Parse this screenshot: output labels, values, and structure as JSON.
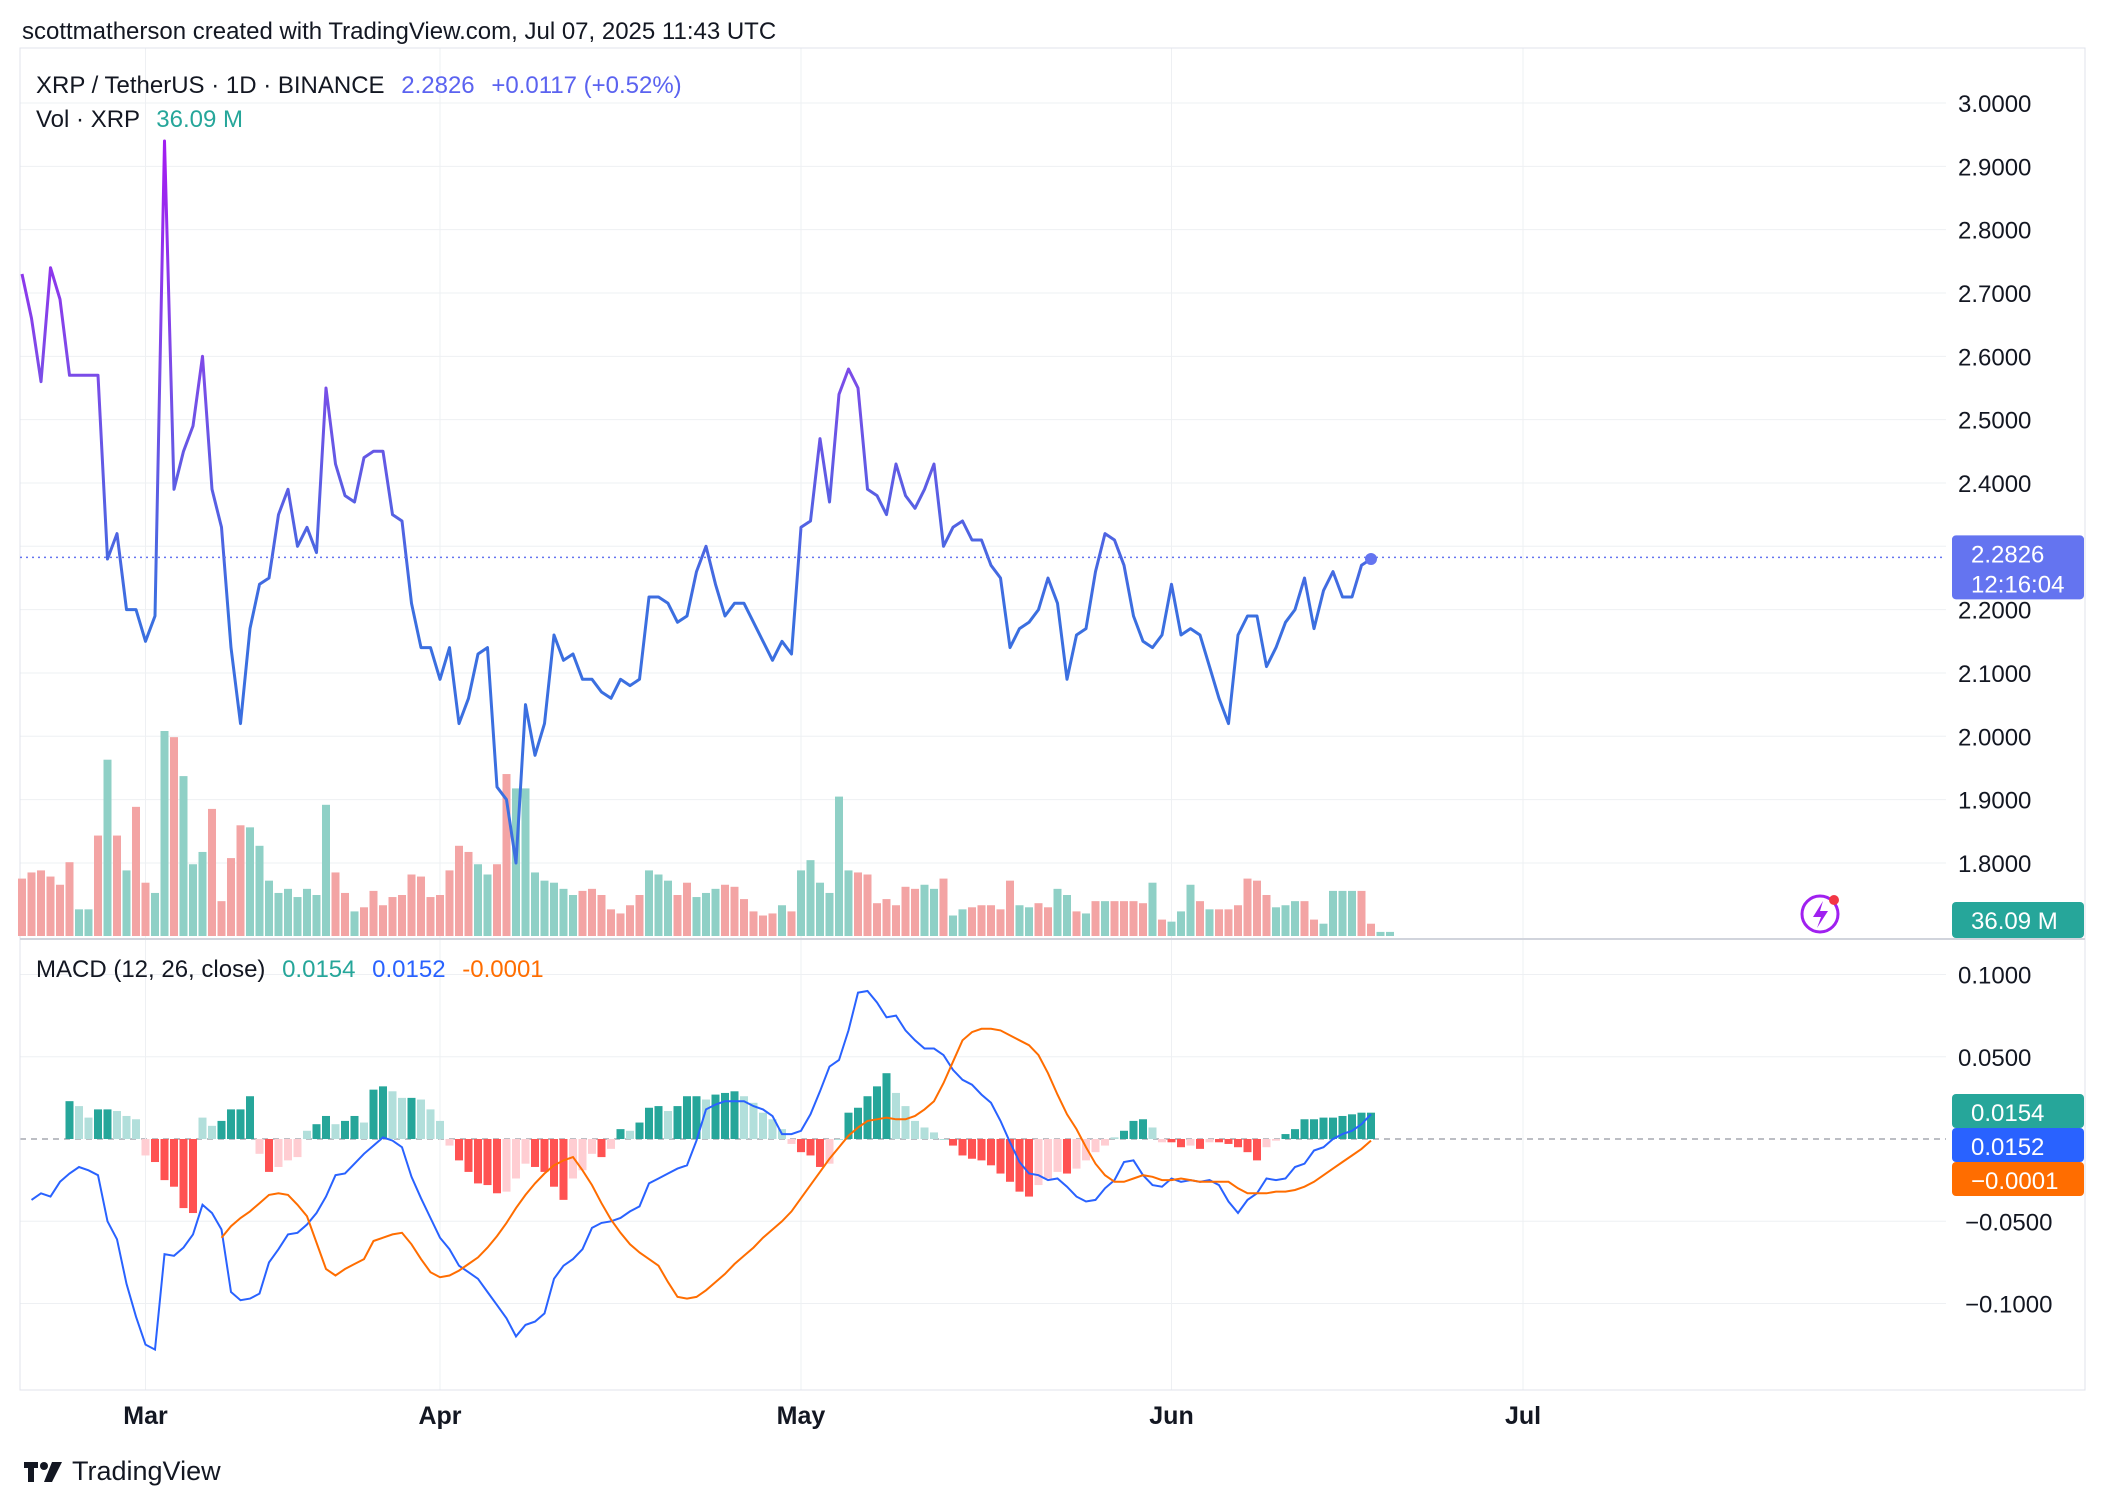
{
  "header": {
    "attribution": "scottmatherson created with TradingView.com, Jul 07, 2025 11:43 UTC"
  },
  "legend": {
    "symbol": "XRP / TetherUS · 1D · BINANCE",
    "price": "2.2826",
    "change": "+0.0117 (+0.52%)",
    "vol_label": "Vol · XRP",
    "vol_value": "36.09 M",
    "macd_label": "MACD (12, 26, close)",
    "macd_hist": "0.0154",
    "macd_line": "0.0152",
    "macd_signal": "-0.0001"
  },
  "badges": {
    "price": "2.2826",
    "countdown": "12:16:04",
    "volume": "36.09 M",
    "hist": "0.0154",
    "macd": "0.0152",
    "signal": "−0.0001"
  },
  "footer": {
    "brand": "TradingView"
  },
  "colors": {
    "price_line_blue": "#3b6fe0",
    "price_line_purple": "#a020f0",
    "vol_up": "#8fd0c6",
    "vol_down": "#f3a4a4",
    "macd_line": "#2962ff",
    "signal_line": "#ff6d00",
    "hist_up_strong": "#26a69a",
    "hist_up_weak": "#b2dfdb",
    "hist_down_strong": "#ff5252",
    "hist_down_weak": "#ffcdd2",
    "price_badge": "#6474f0",
    "grid": "#eef0f3"
  },
  "chart_data": [
    {
      "type": "line",
      "panel": "price",
      "title": "XRP / TetherUS · 1D · BINANCE",
      "y_ticks": [
        "3.0000",
        "2.9000",
        "2.8000",
        "2.7000",
        "2.6000",
        "2.5000",
        "2.4000",
        "2.3000",
        "2.2000",
        "2.1000",
        "2.0000",
        "1.9000",
        "1.8000"
      ],
      "x_ticks": [
        "Mar",
        "Apr",
        "May",
        "Jun",
        "Jul"
      ],
      "ylim": [
        1.77,
        3.03
      ],
      "last_value": 2.2826,
      "close": [
        2.73,
        2.66,
        2.56,
        2.74,
        2.69,
        2.57,
        2.57,
        2.57,
        2.57,
        2.28,
        2.32,
        2.2,
        2.2,
        2.15,
        2.19,
        2.94,
        2.39,
        2.45,
        2.49,
        2.6,
        2.39,
        2.33,
        2.14,
        2.02,
        2.17,
        2.24,
        2.25,
        2.35,
        2.39,
        2.3,
        2.33,
        2.29,
        2.55,
        2.43,
        2.38,
        2.37,
        2.44,
        2.45,
        2.45,
        2.35,
        2.34,
        2.21,
        2.14,
        2.14,
        2.09,
        2.14,
        2.02,
        2.06,
        2.13,
        2.14,
        1.92,
        1.9,
        1.8,
        2.05,
        1.97,
        2.02,
        2.16,
        2.12,
        2.13,
        2.09,
        2.09,
        2.07,
        2.06,
        2.09,
        2.08,
        2.09,
        2.22,
        2.22,
        2.21,
        2.18,
        2.19,
        2.26,
        2.3,
        2.24,
        2.19,
        2.21,
        2.21,
        2.18,
        2.15,
        2.12,
        2.15,
        2.13,
        2.33,
        2.34,
        2.47,
        2.37,
        2.54,
        2.58,
        2.55,
        2.39,
        2.38,
        2.35,
        2.43,
        2.38,
        2.36,
        2.39,
        2.43,
        2.3,
        2.33,
        2.34,
        2.31,
        2.31,
        2.27,
        2.25,
        2.14,
        2.17,
        2.18,
        2.2,
        2.25,
        2.21,
        2.09,
        2.16,
        2.17,
        2.26,
        2.32,
        2.31,
        2.27,
        2.19,
        2.15,
        2.14,
        2.16,
        2.24,
        2.16,
        2.17,
        2.16,
        2.11,
        2.06,
        2.02,
        2.16,
        2.19,
        2.19,
        2.11,
        2.14,
        2.18,
        2.2,
        2.25,
        2.17,
        2.23,
        2.26,
        2.22,
        2.22,
        2.27,
        2.28
      ]
    },
    {
      "type": "bar",
      "panel": "volume",
      "title": "Vol · XRP",
      "last_value": "36.09 M",
      "volume_relative": [
        0.28,
        0.31,
        0.32,
        0.29,
        0.25,
        0.36,
        0.13,
        0.13,
        0.49,
        0.86,
        0.49,
        0.32,
        0.63,
        0.26,
        0.21,
        1.0,
        0.97,
        0.78,
        0.35,
        0.41,
        0.62,
        0.17,
        0.38,
        0.54,
        0.53,
        0.44,
        0.27,
        0.21,
        0.23,
        0.19,
        0.23,
        0.2,
        0.64,
        0.31,
        0.21,
        0.12,
        0.14,
        0.22,
        0.15,
        0.19,
        0.2,
        0.3,
        0.29,
        0.19,
        0.2,
        0.32,
        0.44,
        0.41,
        0.35,
        0.3,
        0.35,
        0.79,
        0.72,
        0.72,
        0.31,
        0.27,
        0.26,
        0.23,
        0.2,
        0.22,
        0.23,
        0.2,
        0.13,
        0.11,
        0.15,
        0.2,
        0.32,
        0.3,
        0.27,
        0.2,
        0.26,
        0.19,
        0.21,
        0.23,
        0.25,
        0.24,
        0.18,
        0.12,
        0.1,
        0.11,
        0.15,
        0.12,
        0.32,
        0.37,
        0.26,
        0.21,
        0.68,
        0.32,
        0.31,
        0.3,
        0.16,
        0.18,
        0.15,
        0.24,
        0.23,
        0.25,
        0.23,
        0.28,
        0.1,
        0.13,
        0.14,
        0.15,
        0.15,
        0.13,
        0.27,
        0.15,
        0.14,
        0.16,
        0.14,
        0.23,
        0.2,
        0.12,
        0.11,
        0.17,
        0.17,
        0.17,
        0.17,
        0.17,
        0.16,
        0.26,
        0.08,
        0.07,
        0.12,
        0.25,
        0.17,
        0.13,
        0.13,
        0.13,
        0.15,
        0.28,
        0.27,
        0.2,
        0.14,
        0.15,
        0.17,
        0.17,
        0.08,
        0.06,
        0.22,
        0.22,
        0.22,
        0.22,
        0.06,
        0.02,
        0.02
      ],
      "up_days": [
        false,
        false,
        false,
        false,
        false,
        false,
        true,
        true,
        false,
        true,
        false,
        true,
        false,
        false,
        true,
        true,
        false,
        true,
        true,
        true,
        false,
        false,
        false,
        false,
        true,
        true,
        true,
        true,
        true,
        true,
        true,
        true,
        true,
        false,
        false,
        true,
        false,
        false,
        false,
        false,
        false,
        false,
        false,
        false,
        false,
        false,
        false,
        false,
        true,
        true,
        false,
        false,
        true,
        true,
        true,
        true,
        true,
        true,
        true,
        false,
        false,
        false,
        false,
        false,
        false,
        false,
        true,
        true,
        true,
        false,
        false,
        true,
        true,
        true,
        false,
        false,
        false,
        false,
        false,
        false,
        true,
        false,
        true,
        true,
        true,
        true,
        true,
        true,
        false,
        false,
        false,
        false,
        false,
        false,
        false,
        true,
        true,
        false,
        true,
        true,
        false,
        false,
        false,
        false,
        false,
        true,
        true,
        false,
        false,
        true,
        true,
        false,
        true,
        false,
        true,
        false,
        false,
        false,
        false,
        true,
        false,
        true,
        true,
        true,
        false,
        true,
        false,
        false,
        false,
        false,
        false,
        false,
        true,
        true,
        true,
        false,
        false,
        true,
        true,
        true,
        true,
        false,
        false,
        true,
        true
      ]
    },
    {
      "type": "line",
      "panel": "macd",
      "title": "MACD (12, 26, close)",
      "y_ticks": [
        "0.1000",
        "0.0500",
        "−0.0500",
        "−0.1000"
      ],
      "ylim": [
        -0.125,
        0.105
      ],
      "macd": [
        -0.037,
        -0.033,
        -0.035,
        -0.026,
        -0.021,
        -0.017,
        -0.019,
        -0.022,
        -0.05,
        -0.061,
        -0.088,
        -0.108,
        -0.125,
        -0.128,
        -0.07,
        -0.071,
        -0.066,
        -0.058,
        -0.04,
        -0.045,
        -0.055,
        -0.093,
        -0.098,
        -0.097,
        -0.094,
        -0.075,
        -0.067,
        -0.058,
        -0.057,
        -0.052,
        -0.045,
        -0.035,
        -0.022,
        -0.021,
        -0.015,
        -0.009,
        -0.004,
        0.001,
        -0.001,
        -0.005,
        -0.023,
        -0.036,
        -0.048,
        -0.06,
        -0.067,
        -0.077,
        -0.081,
        -0.085,
        -0.093,
        -0.101,
        -0.109,
        -0.12,
        -0.113,
        -0.111,
        -0.106,
        -0.085,
        -0.077,
        -0.073,
        -0.067,
        -0.054,
        -0.051,
        -0.05,
        -0.048,
        -0.044,
        -0.041,
        -0.027,
        -0.024,
        -0.021,
        -0.018,
        -0.016,
        -0.001,
        0.018,
        0.021,
        0.023,
        0.023,
        0.023,
        0.02,
        0.018,
        0.014,
        0.003,
        0.003,
        0.005,
        0.015,
        0.029,
        0.044,
        0.048,
        0.066,
        0.089,
        0.09,
        0.083,
        0.074,
        0.075,
        0.066,
        0.06,
        0.055,
        0.055,
        0.051,
        0.042,
        0.036,
        0.033,
        0.027,
        0.022,
        0.011,
        -0.002,
        -0.014,
        -0.021,
        -0.022,
        -0.025,
        -0.024,
        -0.029,
        -0.035,
        -0.038,
        -0.037,
        -0.03,
        -0.025,
        -0.014,
        -0.013,
        -0.022,
        -0.028,
        -0.029,
        -0.024,
        -0.026,
        -0.025,
        -0.026,
        -0.025,
        -0.028,
        -0.038,
        -0.045,
        -0.037,
        -0.033,
        -0.024,
        -0.025,
        -0.024,
        -0.017,
        -0.015,
        -0.007,
        -0.005,
        0.0,
        0.003,
        0.005,
        0.009,
        0.015
      ]
    },
    {
      "type": "line",
      "panel": "macd",
      "series_role": "signal",
      "signal": [
        -0.06,
        -0.053,
        -0.048,
        -0.044,
        -0.039,
        -0.034,
        -0.033,
        -0.034,
        -0.04,
        -0.047,
        -0.063,
        -0.079,
        -0.083,
        -0.079,
        -0.076,
        -0.073,
        -0.062,
        -0.06,
        -0.058,
        -0.057,
        -0.064,
        -0.073,
        -0.081,
        -0.084,
        -0.083,
        -0.08,
        -0.076,
        -0.072,
        -0.066,
        -0.059,
        -0.051,
        -0.042,
        -0.034,
        -0.027,
        -0.021,
        -0.016,
        -0.013,
        -0.011,
        -0.019,
        -0.028,
        -0.039,
        -0.049,
        -0.057,
        -0.064,
        -0.069,
        -0.073,
        -0.077,
        -0.087,
        -0.096,
        -0.097,
        -0.096,
        -0.092,
        -0.087,
        -0.082,
        -0.076,
        -0.071,
        -0.066,
        -0.06,
        -0.055,
        -0.05,
        -0.044,
        -0.036,
        -0.028,
        -0.02,
        -0.012,
        -0.005,
        0.002,
        0.007,
        0.011,
        0.012,
        0.013,
        0.012,
        0.012,
        0.014,
        0.018,
        0.023,
        0.034,
        0.047,
        0.06,
        0.065,
        0.067,
        0.067,
        0.066,
        0.063,
        0.06,
        0.057,
        0.051,
        0.04,
        0.027,
        0.015,
        0.006,
        -0.005,
        -0.015,
        -0.022,
        -0.026,
        -0.026,
        -0.024,
        -0.022,
        -0.023,
        -0.025,
        -0.025,
        -0.024,
        -0.025,
        -0.026,
        -0.026,
        -0.026,
        -0.026,
        -0.03,
        -0.033,
        -0.033,
        -0.033,
        -0.032,
        -0.032,
        -0.031,
        -0.029,
        -0.026,
        -0.022,
        -0.018,
        -0.014,
        -0.01,
        -0.006,
        -0.001
      ]
    },
    {
      "type": "bar",
      "panel": "macd",
      "series_role": "histogram",
      "histogram": [
        0.023,
        0.02,
        0.013,
        0.018,
        0.018,
        0.017,
        0.014,
        0.012,
        -0.01,
        -0.014,
        -0.025,
        -0.029,
        -0.042,
        -0.045,
        0.013,
        0.008,
        0.011,
        0.018,
        0.018,
        0.026,
        -0.009,
        -0.02,
        -0.017,
        -0.013,
        -0.011,
        0.005,
        0.009,
        0.014,
        0.009,
        0.011,
        0.014,
        0.01,
        0.03,
        0.032,
        0.029,
        0.025,
        0.025,
        0.024,
        0.018,
        0.011,
        -0.004,
        -0.013,
        -0.02,
        -0.027,
        -0.028,
        -0.033,
        -0.032,
        -0.024,
        -0.015,
        -0.017,
        -0.02,
        -0.029,
        -0.037,
        -0.024,
        -0.019,
        -0.009,
        -0.011,
        -0.006,
        0.006,
        0.005,
        0.01,
        0.019,
        0.02,
        0.017,
        0.02,
        0.026,
        0.026,
        0.024,
        0.027,
        0.028,
        0.029,
        0.026,
        0.022,
        0.016,
        0.012,
        0.006,
        -0.003,
        -0.008,
        -0.01,
        -0.017,
        -0.015,
        0.0,
        0.016,
        0.019,
        0.026,
        0.032,
        0.04,
        0.028,
        0.02,
        0.011,
        0.007,
        0.004,
        0.0,
        -0.004,
        -0.01,
        -0.012,
        -0.013,
        -0.016,
        -0.021,
        -0.026,
        -0.032,
        -0.035,
        -0.028,
        -0.024,
        -0.02,
        -0.021,
        -0.018,
        -0.013,
        -0.008,
        -0.004,
        0.001,
        0.005,
        0.011,
        0.012,
        0.007,
        -0.002,
        -0.002,
        -0.005,
        -0.004,
        -0.006,
        -0.002,
        -0.002,
        -0.003,
        -0.005,
        -0.008,
        -0.013,
        -0.005,
        -0.001,
        0.003,
        0.006,
        0.012,
        0.012,
        0.013,
        0.013,
        0.014,
        0.015,
        0.016,
        0.016
      ]
    }
  ]
}
